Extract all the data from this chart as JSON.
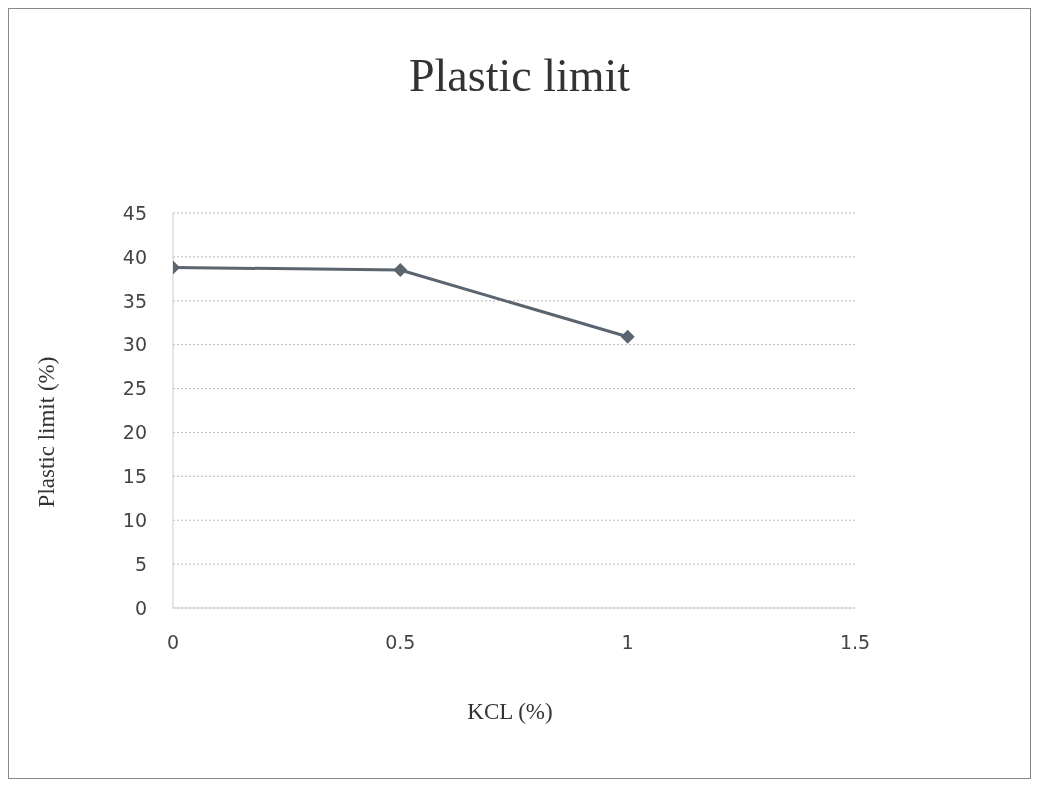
{
  "chart_data": {
    "type": "line",
    "title": "Plastic limit",
    "xlabel": "KCL (%)",
    "ylabel": "Plastic limit (%)",
    "x": [
      0,
      0.5,
      1
    ],
    "series": [
      {
        "color": "#5b6570",
        "values": [
          38.8,
          38.5,
          30.9
        ]
      }
    ],
    "xlim": [
      0,
      1.5
    ],
    "xticks": [
      0,
      0.5,
      1,
      1.5
    ],
    "ylim": [
      0,
      45
    ],
    "yticks": [
      0,
      5,
      10,
      15,
      20,
      25,
      30,
      35,
      40,
      45
    ],
    "grid": "y",
    "legend": false,
    "marker": "diamond",
    "line_style": "solid"
  }
}
